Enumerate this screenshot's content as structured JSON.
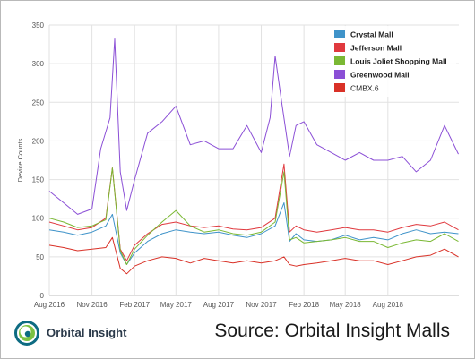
{
  "chart_data": {
    "type": "line",
    "ylabel": "Device Counts",
    "ylim": [
      0,
      350
    ],
    "yticks": [
      0,
      50,
      100,
      150,
      200,
      250,
      300,
      350
    ],
    "xrange": [
      "2016-08-01",
      "2019-01-01"
    ],
    "xticks": [
      "Aug 2016",
      "Nov 2016",
      "Feb 2017",
      "May 2017",
      "Aug 2017",
      "Nov 2017",
      "Feb 2018",
      "May 2018",
      "Aug 2018"
    ],
    "grid": true,
    "legend_position": "top-right",
    "series": [
      {
        "name": "Crystal Mall",
        "color": "#3f93c9",
        "x": [
          "2016-08-01",
          "2016-09-01",
          "2016-10-01",
          "2016-11-01",
          "2016-12-01",
          "2016-12-15",
          "2017-01-01",
          "2017-01-15",
          "2017-02-01",
          "2017-03-01",
          "2017-04-01",
          "2017-05-01",
          "2017-06-01",
          "2017-07-01",
          "2017-08-01",
          "2017-09-01",
          "2017-10-01",
          "2017-11-01",
          "2017-12-01",
          "2017-12-20",
          "2018-01-01",
          "2018-01-15",
          "2018-02-01",
          "2018-03-01",
          "2018-04-01",
          "2018-05-01",
          "2018-06-01",
          "2018-07-01",
          "2018-08-01",
          "2018-09-01",
          "2018-10-01",
          "2018-11-01",
          "2018-12-01",
          "2018-12-31"
        ],
        "values": [
          85,
          82,
          78,
          82,
          90,
          105,
          55,
          40,
          55,
          70,
          80,
          85,
          82,
          80,
          82,
          78,
          75,
          80,
          90,
          120,
          70,
          80,
          72,
          70,
          72,
          78,
          72,
          75,
          72,
          80,
          85,
          80,
          82,
          80
        ]
      },
      {
        "name": "Jefferson Mall",
        "color": "#e0393e",
        "x": [
          "2016-08-01",
          "2016-09-01",
          "2016-10-01",
          "2016-11-01",
          "2016-12-01",
          "2016-12-15",
          "2017-01-01",
          "2017-01-15",
          "2017-02-01",
          "2017-03-01",
          "2017-04-01",
          "2017-05-01",
          "2017-06-01",
          "2017-07-01",
          "2017-08-01",
          "2017-09-01",
          "2017-10-01",
          "2017-11-01",
          "2017-12-01",
          "2017-12-20",
          "2018-01-01",
          "2018-01-15",
          "2018-02-01",
          "2018-03-01",
          "2018-04-01",
          "2018-05-01",
          "2018-06-01",
          "2018-07-01",
          "2018-08-01",
          "2018-09-01",
          "2018-10-01",
          "2018-11-01",
          "2018-12-01",
          "2018-12-31"
        ],
        "values": [
          95,
          90,
          85,
          88,
          100,
          165,
          60,
          45,
          65,
          80,
          92,
          95,
          90,
          88,
          90,
          86,
          85,
          88,
          100,
          170,
          82,
          90,
          85,
          82,
          85,
          88,
          85,
          85,
          82,
          88,
          92,
          90,
          95,
          85
        ]
      },
      {
        "name": "Louis Joliet Shopping Mall",
        "color": "#7ab833",
        "x": [
          "2016-08-01",
          "2016-09-01",
          "2016-10-01",
          "2016-11-01",
          "2016-12-01",
          "2016-12-15",
          "2017-01-01",
          "2017-01-15",
          "2017-02-01",
          "2017-03-01",
          "2017-04-01",
          "2017-05-01",
          "2017-06-01",
          "2017-07-01",
          "2017-08-01",
          "2017-09-01",
          "2017-10-01",
          "2017-11-01",
          "2017-12-01",
          "2017-12-20",
          "2018-01-01",
          "2018-01-15",
          "2018-02-01",
          "2018-03-01",
          "2018-04-01",
          "2018-05-01",
          "2018-06-01",
          "2018-07-01",
          "2018-08-01",
          "2018-09-01",
          "2018-10-01",
          "2018-11-01",
          "2018-12-01",
          "2018-12-31"
        ],
        "values": [
          100,
          95,
          88,
          90,
          98,
          165,
          58,
          40,
          60,
          78,
          95,
          110,
          90,
          82,
          85,
          80,
          78,
          82,
          95,
          160,
          72,
          75,
          68,
          70,
          72,
          75,
          70,
          70,
          62,
          68,
          72,
          70,
          80,
          70
        ]
      },
      {
        "name": "Greenwood Mall",
        "color": "#8b4fd6",
        "x": [
          "2016-08-01",
          "2016-09-01",
          "2016-10-01",
          "2016-11-01",
          "2016-11-20",
          "2016-12-10",
          "2016-12-20",
          "2017-01-01",
          "2017-01-15",
          "2017-02-01",
          "2017-03-01",
          "2017-04-01",
          "2017-05-01",
          "2017-06-01",
          "2017-07-01",
          "2017-08-01",
          "2017-09-01",
          "2017-10-01",
          "2017-11-01",
          "2017-11-20",
          "2017-12-01",
          "2017-12-15",
          "2018-01-01",
          "2018-01-15",
          "2018-02-01",
          "2018-03-01",
          "2018-04-01",
          "2018-05-01",
          "2018-06-01",
          "2018-07-01",
          "2018-08-01",
          "2018-09-01",
          "2018-10-01",
          "2018-11-01",
          "2018-12-01",
          "2018-12-31"
        ],
        "values": [
          135,
          120,
          105,
          112,
          190,
          230,
          332,
          160,
          110,
          150,
          210,
          225,
          245,
          195,
          200,
          190,
          190,
          220,
          185,
          230,
          310,
          250,
          180,
          220,
          225,
          195,
          185,
          175,
          185,
          175,
          175,
          180,
          160,
          175,
          220,
          183
        ]
      },
      {
        "name": "CMBX.6",
        "color": "#d93127",
        "x": [
          "2016-08-01",
          "2016-09-01",
          "2016-10-01",
          "2016-11-01",
          "2016-12-01",
          "2016-12-15",
          "2017-01-01",
          "2017-01-15",
          "2017-02-01",
          "2017-03-01",
          "2017-04-01",
          "2017-05-01",
          "2017-06-01",
          "2017-07-01",
          "2017-08-01",
          "2017-09-01",
          "2017-10-01",
          "2017-11-01",
          "2017-12-01",
          "2017-12-20",
          "2018-01-01",
          "2018-01-15",
          "2018-02-01",
          "2018-03-01",
          "2018-04-01",
          "2018-05-01",
          "2018-06-01",
          "2018-07-01",
          "2018-08-01",
          "2018-09-01",
          "2018-10-01",
          "2018-11-01",
          "2018-12-01",
          "2018-12-31"
        ],
        "values": [
          65,
          62,
          58,
          60,
          62,
          75,
          35,
          28,
          38,
          45,
          50,
          48,
          42,
          48,
          45,
          42,
          45,
          42,
          45,
          50,
          40,
          38,
          40,
          42,
          45,
          48,
          45,
          45,
          40,
          45,
          50,
          52,
          60,
          50
        ]
      }
    ]
  },
  "footer": {
    "brand": "Orbital Insight",
    "source": "Source: Orbital Insight Malls"
  }
}
